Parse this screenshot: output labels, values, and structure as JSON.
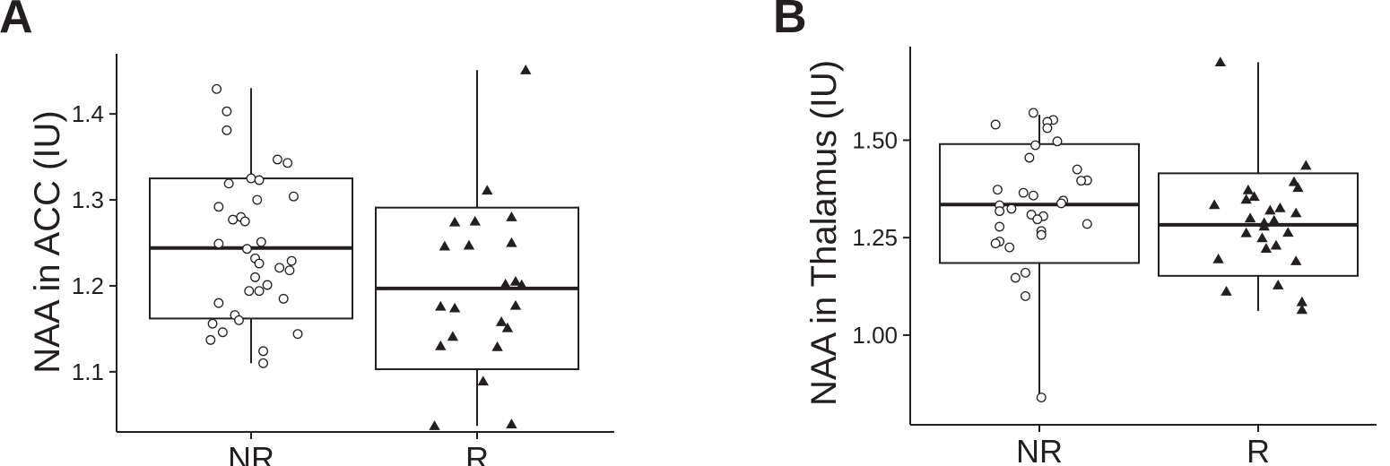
{
  "chart_data": [
    {
      "panel_label": "A",
      "type": "box",
      "ylabel": "NAA in ACC (IU)",
      "categories": [
        "NR",
        "R"
      ],
      "ylim": [
        1.03,
        1.47
      ],
      "yticks": [
        1.1,
        1.2,
        1.3,
        1.4
      ],
      "ytick_labels": [
        "1.1",
        "1.2",
        "1.3",
        "1.4"
      ],
      "grid": false,
      "boxes": [
        {
          "category": "NR",
          "whisker_low": 1.11,
          "q1": 1.162,
          "median": 1.244,
          "q3": 1.325,
          "whisker_high": 1.43,
          "marker": "circle",
          "points": [
            [
              -0.17,
              1.429
            ],
            [
              -0.12,
              1.403
            ],
            [
              -0.12,
              1.381
            ],
            [
              0.13,
              1.347
            ],
            [
              0.18,
              1.343
            ],
            [
              0.0,
              1.325
            ],
            [
              0.04,
              1.323
            ],
            [
              -0.11,
              1.319
            ],
            [
              0.21,
              1.304
            ],
            [
              0.03,
              1.3
            ],
            [
              -0.16,
              1.292
            ],
            [
              -0.05,
              1.28
            ],
            [
              -0.09,
              1.277
            ],
            [
              -0.03,
              1.275
            ],
            [
              0.05,
              1.251
            ],
            [
              -0.16,
              1.249
            ],
            [
              -0.02,
              1.243
            ],
            [
              0.02,
              1.232
            ],
            [
              0.04,
              1.226
            ],
            [
              0.2,
              1.229
            ],
            [
              0.19,
              1.218
            ],
            [
              0.14,
              1.221
            ],
            [
              0.02,
              1.21
            ],
            [
              0.08,
              1.201
            ],
            [
              0.04,
              1.194
            ],
            [
              -0.01,
              1.194
            ],
            [
              0.16,
              1.185
            ],
            [
              -0.16,
              1.18
            ],
            [
              -0.08,
              1.166
            ],
            [
              -0.06,
              1.16
            ],
            [
              -0.19,
              1.156
            ],
            [
              -0.14,
              1.146
            ],
            [
              0.23,
              1.144
            ],
            [
              -0.2,
              1.137
            ],
            [
              0.06,
              1.124
            ],
            [
              0.06,
              1.11
            ]
          ]
        },
        {
          "category": "R",
          "whisker_low": 1.037,
          "q1": 1.103,
          "median": 1.197,
          "q3": 1.291,
          "whisker_high": 1.451,
          "marker": "triangle",
          "points": [
            [
              0.24,
              1.451
            ],
            [
              0.05,
              1.311
            ],
            [
              0.17,
              1.28
            ],
            [
              -0.11,
              1.274
            ],
            [
              -0.01,
              1.275
            ],
            [
              0.17,
              1.25
            ],
            [
              -0.16,
              1.246
            ],
            [
              -0.04,
              1.247
            ],
            [
              0.19,
              1.205
            ],
            [
              0.14,
              1.202
            ],
            [
              0.22,
              1.201
            ],
            [
              0.19,
              1.177
            ],
            [
              -0.18,
              1.176
            ],
            [
              -0.11,
              1.174
            ],
            [
              0.12,
              1.158
            ],
            [
              0.15,
              1.151
            ],
            [
              -0.12,
              1.141
            ],
            [
              0.1,
              1.129
            ],
            [
              -0.18,
              1.13
            ],
            [
              0.03,
              1.089
            ],
            [
              0.17,
              1.039
            ],
            [
              -0.21,
              1.037
            ]
          ]
        }
      ]
    },
    {
      "panel_label": "B",
      "type": "box",
      "ylabel": "NAA in Thalamus (IU)",
      "categories": [
        "NR",
        "R"
      ],
      "ylim": [
        0.77,
        1.74
      ],
      "yticks": [
        1.0,
        1.25,
        1.5
      ],
      "ytick_labels": [
        "1.00",
        "1.25",
        "1.50"
      ],
      "grid": false,
      "boxes": [
        {
          "category": "NR",
          "whisker_low": 0.84,
          "q1": 1.185,
          "median": 1.335,
          "q3": 1.49,
          "whisker_high": 1.565,
          "marker": "circle",
          "points": [
            [
              -0.03,
              1.57
            ],
            [
              0.07,
              1.552
            ],
            [
              0.04,
              1.547
            ],
            [
              -0.22,
              1.54
            ],
            [
              0.04,
              1.531
            ],
            [
              0.09,
              1.497
            ],
            [
              -0.02,
              1.487
            ],
            [
              -0.05,
              1.455
            ],
            [
              0.19,
              1.425
            ],
            [
              0.24,
              1.397
            ],
            [
              0.21,
              1.396
            ],
            [
              -0.21,
              1.373
            ],
            [
              -0.08,
              1.365
            ],
            [
              -0.03,
              1.358
            ],
            [
              0.12,
              1.345
            ],
            [
              0.11,
              1.338
            ],
            [
              -0.2,
              1.333
            ],
            [
              -0.2,
              1.318
            ],
            [
              -0.14,
              1.324
            ],
            [
              -0.04,
              1.309
            ],
            [
              0.02,
              1.305
            ],
            [
              -0.01,
              1.297
            ],
            [
              0.24,
              1.285
            ],
            [
              -0.2,
              1.278
            ],
            [
              0.01,
              1.267
            ],
            [
              0.01,
              1.257
            ],
            [
              -0.2,
              1.24
            ],
            [
              -0.22,
              1.235
            ],
            [
              -0.15,
              1.225
            ],
            [
              -0.07,
              1.16
            ],
            [
              -0.12,
              1.147
            ],
            [
              -0.07,
              1.1
            ],
            [
              0.01,
              0.84
            ]
          ]
        },
        {
          "category": "R",
          "whisker_low": 1.062,
          "q1": 1.152,
          "median": 1.283,
          "q3": 1.415,
          "whisker_high": 1.7,
          "marker": "triangle",
          "points": [
            [
              -0.19,
              1.7
            ],
            [
              0.24,
              1.435
            ],
            [
              0.18,
              1.393
            ],
            [
              0.2,
              1.378
            ],
            [
              -0.05,
              1.372
            ],
            [
              -0.06,
              1.348
            ],
            [
              0.11,
              1.326
            ],
            [
              -0.22,
              1.334
            ],
            [
              -0.02,
              1.355
            ],
            [
              0.06,
              1.32
            ],
            [
              0.19,
              1.313
            ],
            [
              -0.04,
              1.3
            ],
            [
              0.08,
              1.294
            ],
            [
              0.03,
              1.288
            ],
            [
              0.03,
              1.279
            ],
            [
              -0.06,
              1.262
            ],
            [
              0.15,
              1.263
            ],
            [
              0.02,
              1.249
            ],
            [
              0.09,
              1.23
            ],
            [
              0.04,
              1.222
            ],
            [
              -0.2,
              1.195
            ],
            [
              0.19,
              1.19
            ],
            [
              0.1,
              1.128
            ],
            [
              -0.16,
              1.112
            ],
            [
              0.22,
              1.085
            ],
            [
              0.22,
              1.065
            ]
          ]
        }
      ]
    }
  ]
}
